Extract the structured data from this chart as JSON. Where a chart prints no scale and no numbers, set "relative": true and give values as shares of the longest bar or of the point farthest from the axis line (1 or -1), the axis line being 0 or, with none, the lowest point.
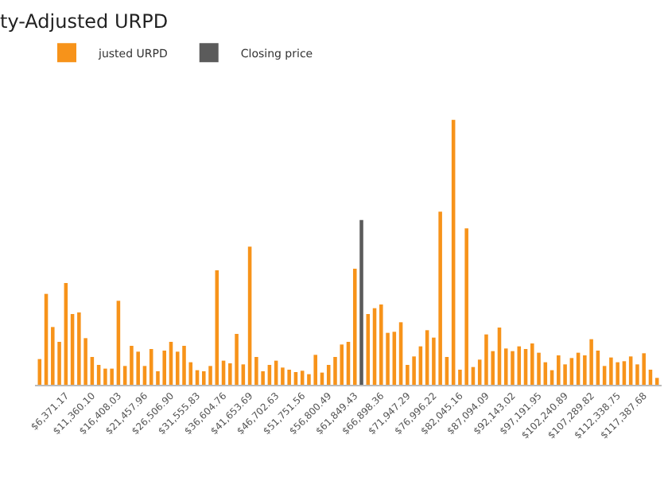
{
  "chart_data": {
    "type": "bar",
    "title": "ty-Adjusted URPD",
    "relative": true,
    "legend": "top left",
    "categories": [
      null,
      null,
      null,
      null,
      "$6,371.17",
      null,
      null,
      null,
      "$11,360.10",
      null,
      null,
      null,
      "$16,408.03",
      null,
      null,
      null,
      "$21,457.96",
      null,
      null,
      null,
      "$26,506.90",
      null,
      null,
      null,
      "$31,555.83",
      null,
      null,
      null,
      "$36,604.76",
      null,
      null,
      null,
      "$41,653.69",
      null,
      null,
      null,
      "$46,702.63",
      null,
      null,
      null,
      "$51,751.56",
      null,
      null,
      null,
      "$56,800.49",
      null,
      null,
      null,
      "$61,849.43",
      null,
      null,
      null,
      "$66,898.36",
      null,
      null,
      null,
      "$71,947.29",
      null,
      null,
      null,
      "$76,996.22",
      null,
      null,
      null,
      "$82,045.16",
      null,
      null,
      null,
      "$87,094.09",
      null,
      null,
      null,
      "$92,143.02",
      null,
      null,
      null,
      "$97,191.95",
      null,
      null,
      null,
      "$102,240.89",
      null,
      null,
      null,
      "$107,289.82",
      null,
      null,
      null,
      "$112,338.75",
      null,
      null,
      null,
      "$117,387.68",
      null,
      null
    ],
    "series": [
      {
        "name": "justed URPD",
        "color": "#f7931a",
        "values": [
          0.097,
          0.343,
          0.218,
          0.162,
          0.384,
          0.267,
          0.273,
          0.176,
          0.105,
          0.075,
          0.061,
          0.061,
          0.317,
          0.071,
          0.147,
          0.125,
          0.071,
          0.135,
          0.051,
          0.129,
          0.162,
          0.125,
          0.147,
          0.085,
          0.055,
          0.051,
          0.071,
          0.432,
          0.091,
          0.081,
          0.192,
          0.077,
          0.521,
          0.105,
          0.051,
          0.075,
          0.091,
          0.065,
          0.057,
          0.048,
          0.053,
          0.04,
          0.113,
          0.046,
          0.075,
          0.105,
          0.152,
          0.162,
          0.438,
          null,
          0.267,
          0.289,
          0.303,
          0.196,
          0.2,
          0.236,
          0.075,
          0.107,
          0.145,
          0.206,
          0.178,
          0.653,
          0.105,
          1,
          0.057,
          0.59,
          0.067,
          0.095,
          0.19,
          0.127,
          0.216,
          0.137,
          0.127,
          0.145,
          0.135,
          0.156,
          0.121,
          0.085,
          0.055,
          0.111,
          0.077,
          0.101,
          0.121,
          0.111,
          0.172,
          0.129,
          0.071,
          0.103,
          0.085,
          0.089,
          0.107,
          0.077,
          0.119,
          0.057,
          0.026
        ]
      },
      {
        "name": "Closing price",
        "color": "#5b5b5b",
        "values": [
          null,
          null,
          null,
          null,
          null,
          null,
          null,
          null,
          null,
          null,
          null,
          null,
          null,
          null,
          null,
          null,
          null,
          null,
          null,
          null,
          null,
          null,
          null,
          null,
          null,
          null,
          null,
          null,
          null,
          null,
          null,
          null,
          null,
          null,
          null,
          null,
          null,
          null,
          null,
          null,
          null,
          null,
          null,
          null,
          null,
          null,
          null,
          null,
          null,
          0.622,
          null,
          null,
          null,
          null,
          null,
          null,
          null,
          null,
          null,
          null,
          null,
          null,
          null,
          null,
          null,
          null,
          null,
          null,
          null,
          null,
          null,
          null,
          null,
          null,
          null,
          null,
          null,
          null,
          null,
          null,
          null,
          null,
          null,
          null,
          null,
          null,
          null,
          null,
          null,
          null,
          null,
          null,
          null,
          null,
          null
        ]
      }
    ]
  }
}
